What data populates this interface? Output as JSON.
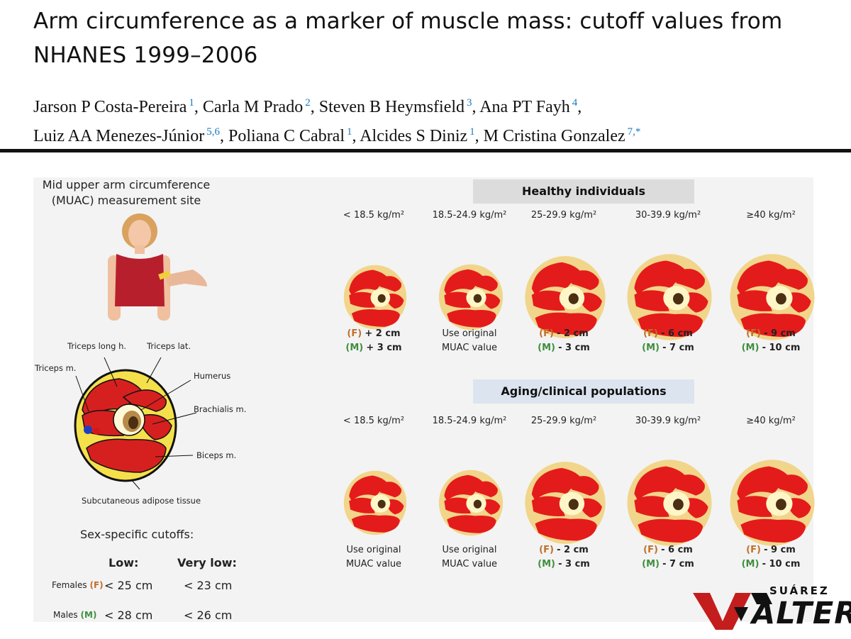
{
  "paper": {
    "title_line1": "Arm circumference as a marker of muscle mass: cutoff values from",
    "title_line2": "NHANES 1999–2006",
    "authors": [
      {
        "name": "Jarson P Costa-Pereira",
        "aff": "1"
      },
      {
        "name": "Carla M Prado",
        "aff": "2"
      },
      {
        "name": "Steven B Heymsfield",
        "aff": "3"
      },
      {
        "name": "Ana PT Fayh",
        "aff": "4"
      },
      {
        "name": "Luiz AA Menezes-Júnior",
        "aff": "5,6"
      },
      {
        "name": "Poliana C Cabral",
        "aff": "1"
      },
      {
        "name": "Alcides S Diniz",
        "aff": "1"
      },
      {
        "name": "M Cristina Gonzalez",
        "aff": "7,*"
      }
    ]
  },
  "figure": {
    "site_caption_line1": "Mid upper arm circumference",
    "site_caption_line2": "(MUAC) measurement site",
    "anatomy_labels": {
      "triceps_long": "Triceps long h.",
      "triceps_lat": "Triceps lat.",
      "triceps_m": "Triceps m.",
      "humerus": "Humerus",
      "brachialis": "Brachialis m.",
      "biceps": "Biceps m.",
      "adipose": "Subcutaneous adipose tissue"
    },
    "cutoffs": {
      "heading": "Sex-specific cutoffs:",
      "low_header": "Low:",
      "very_low_header": "Very low:",
      "females_label": "Females",
      "females_code": "(F)",
      "females_low": "< 25 cm",
      "females_very_low": "< 23 cm",
      "males_label": "Males",
      "males_code": "(M)",
      "males_low": "< 28 cm",
      "males_very_low": "< 26 cm"
    },
    "healthy": {
      "banner": "Healthy individuals",
      "columns": [
        {
          "bmi": "< 18.5 kg/m²",
          "f_code": "(F)",
          "f_adj": "+ 2 cm",
          "m_code": "(M)",
          "m_adj": "+ 3 cm"
        },
        {
          "bmi": "18.5-24.9 kg/m²",
          "note1": "Use original",
          "note2": "MUAC value"
        },
        {
          "bmi": "25-29.9 kg/m²",
          "f_code": "(F)",
          "f_adj": "- 2 cm",
          "m_code": "(M)",
          "m_adj": "- 3 cm"
        },
        {
          "bmi": "30-39.9 kg/m²",
          "f_code": "(F)",
          "f_adj": "- 6 cm",
          "m_code": "(M)",
          "m_adj": "- 7 cm"
        },
        {
          "bmi": "≥40 kg/m²",
          "f_code": "(F)",
          "f_adj": "- 9 cm",
          "m_code": "(M)",
          "m_adj": "- 10 cm"
        }
      ]
    },
    "clinical": {
      "banner": "Aging/clinical populations",
      "columns": [
        {
          "bmi": "< 18.5 kg/m²",
          "note1": "Use original",
          "note2": "MUAC value"
        },
        {
          "bmi": "18.5-24.9 kg/m²",
          "note1": "Use original",
          "note2": "MUAC value"
        },
        {
          "bmi": "25-29.9 kg/m²",
          "f_code": "(F)",
          "f_adj": "- 2 cm",
          "m_code": "(M)",
          "m_adj": "- 3 cm"
        },
        {
          "bmi": "30-39.9 kg/m²",
          "f_code": "(F)",
          "f_adj": "- 6 cm",
          "m_code": "(M)",
          "m_adj": "- 7 cm"
        },
        {
          "bmi": "≥40 kg/m²",
          "f_code": "(F)",
          "f_adj": "- 9 cm",
          "m_code": "(M)",
          "m_adj": "- 10 cm"
        }
      ]
    }
  },
  "watermark": {
    "top": "SUÁREZ",
    "bottom": "ALTER"
  },
  "colors": {
    "muscle": "#e41b1b",
    "adipose": "#f1d58a",
    "bone": "#fff6c8",
    "marrow": "#4a2f12",
    "female": "#c0702a",
    "male": "#3e8f3e",
    "banner_healthy": "#dcdcdc",
    "banner_clinical": "#dce4ef",
    "watermark_red": "#c41d1d"
  }
}
